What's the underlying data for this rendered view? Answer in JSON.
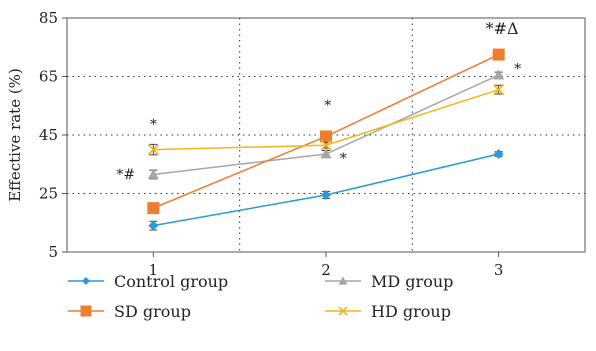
{
  "chart_data": {
    "type": "line",
    "title": "",
    "xlabel": "",
    "ylabel": "Effective rate (%)",
    "x": [
      1,
      2,
      3
    ],
    "x_tick_labels": [
      "1",
      "2",
      "3"
    ],
    "ylim": [
      5,
      85
    ],
    "y_ticks": [
      5,
      25,
      45,
      65,
      85
    ],
    "grid": "dotted horizontal and vertical",
    "legend_placement": "bottom",
    "series": [
      {
        "name": "Control group",
        "values": [
          14,
          24.5,
          38.5
        ],
        "errors": [
          1.5,
          1.2,
          0.8
        ],
        "color": "#2b9ad6",
        "marker": "diamond"
      },
      {
        "name": "MD group",
        "values": [
          31.5,
          38.5,
          65.5
        ],
        "errors": [
          1.5,
          1.2,
          1.0
        ],
        "color": "#a6a6a6",
        "marker": "triangle"
      },
      {
        "name": "SD group",
        "values": [
          20,
          44.5,
          72.5
        ],
        "errors": [
          1.0,
          1.0,
          1.0
        ],
        "color": "#ed7d31",
        "marker": "square"
      },
      {
        "name": "HD group",
        "values": [
          40,
          41.5,
          60.5
        ],
        "errors": [
          1.8,
          1.0,
          1.5
        ],
        "color": "#f4b41c",
        "marker": "x"
      }
    ],
    "annotations": [
      {
        "text": "*#",
        "x": 0.84,
        "y": 30,
        "size": "normal"
      },
      {
        "text": "*",
        "x": 1.0,
        "y": 47,
        "size": "normal"
      },
      {
        "text": "*",
        "x": 2.01,
        "y": 53.5,
        "size": "normal"
      },
      {
        "text": "*",
        "x": 2.1,
        "y": 35.5,
        "size": "normal"
      },
      {
        "text": "*#Δ",
        "x": 3.02,
        "y": 79.5,
        "size": "large"
      },
      {
        "text": "*",
        "x": 3.11,
        "y": 66,
        "size": "normal"
      }
    ]
  }
}
